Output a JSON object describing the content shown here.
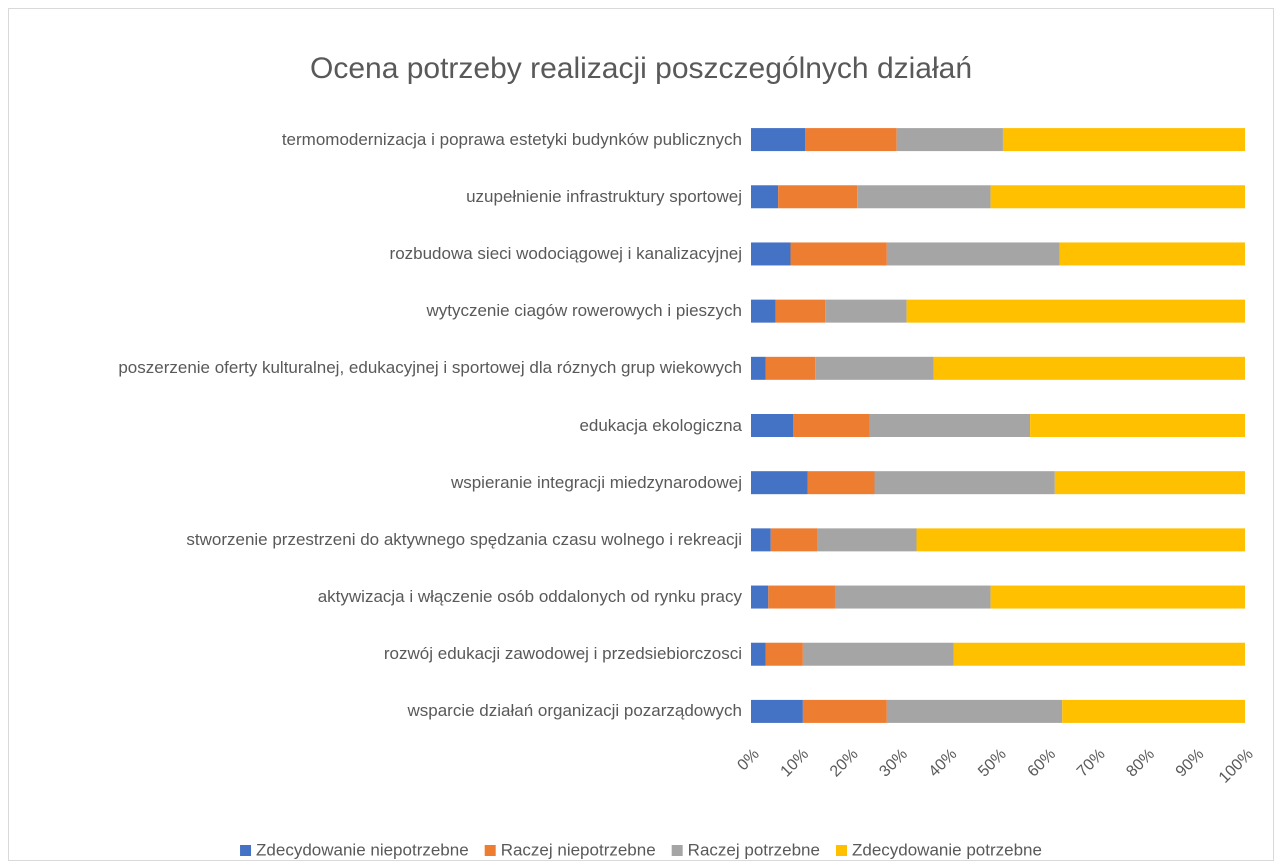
{
  "chart_data": {
    "type": "stacked_bar_horizontal",
    "title": "Ocena potrzeby realizacji poszczególnych działań",
    "categories": [
      "termomodernizacja i poprawa estetyki budynków publicznych",
      "uzupełnienie infrastruktury sportowej",
      "rozbudowa sieci wodociągowej i kanalizacyjnej",
      "wytyczenie ciagów rowerowych i pieszych",
      "poszerzenie oferty kulturalnej, edukacyjnej i sportowej dla róznych grup wiekowych",
      "edukacja ekologiczna",
      "wspieranie integracji miedzynarodowej",
      "stworzenie przestrzeni do aktywnego spędzania czasu wolnego i rekreacji",
      "aktywizacja i włączenie osób oddalonych od rynku pracy",
      "rozwój edukacji zawodowej i przedsiebiorczosci",
      "wsparcie działań organizacji pozarządowych"
    ],
    "series": [
      {
        "name": "Zdecydowanie niepotrzebne",
        "color": "#4472c4",
        "values": [
          11,
          5.5,
          8,
          5,
          3,
          8.5,
          11.5,
          4,
          3.5,
          3,
          10.5
        ]
      },
      {
        "name": "Raczej niepotrzebne",
        "color": "#ed7d31",
        "values": [
          18.5,
          16,
          19.5,
          10,
          10,
          15.5,
          13.5,
          9.5,
          13.5,
          7.5,
          17
        ]
      },
      {
        "name": "Raczej potrzebne",
        "color": "#a5a5a5",
        "values": [
          21.5,
          27,
          35,
          16.5,
          24,
          32.5,
          36.5,
          20,
          31.5,
          30.5,
          35.5
        ]
      },
      {
        "name": "Zdecydowanie potrzebne",
        "color": "#ffc000",
        "values": [
          49,
          51.5,
          37.5,
          68.5,
          63,
          43.5,
          38.5,
          66.5,
          51.5,
          59,
          37
        ]
      }
    ],
    "xlim": [
      0,
      100
    ],
    "xticks": [
      {
        "value": 0,
        "label": "0%"
      },
      {
        "value": 10,
        "label": "10%"
      },
      {
        "value": 20,
        "label": "20%"
      },
      {
        "value": 30,
        "label": "30%"
      },
      {
        "value": 40,
        "label": "40%"
      },
      {
        "value": 50,
        "label": "50%"
      },
      {
        "value": 60,
        "label": "60%"
      },
      {
        "value": 70,
        "label": "70%"
      },
      {
        "value": 80,
        "label": "80%"
      },
      {
        "value": 90,
        "label": "90%"
      },
      {
        "value": 100,
        "label": "100%"
      }
    ],
    "grid": false,
    "legend": "bottom"
  }
}
